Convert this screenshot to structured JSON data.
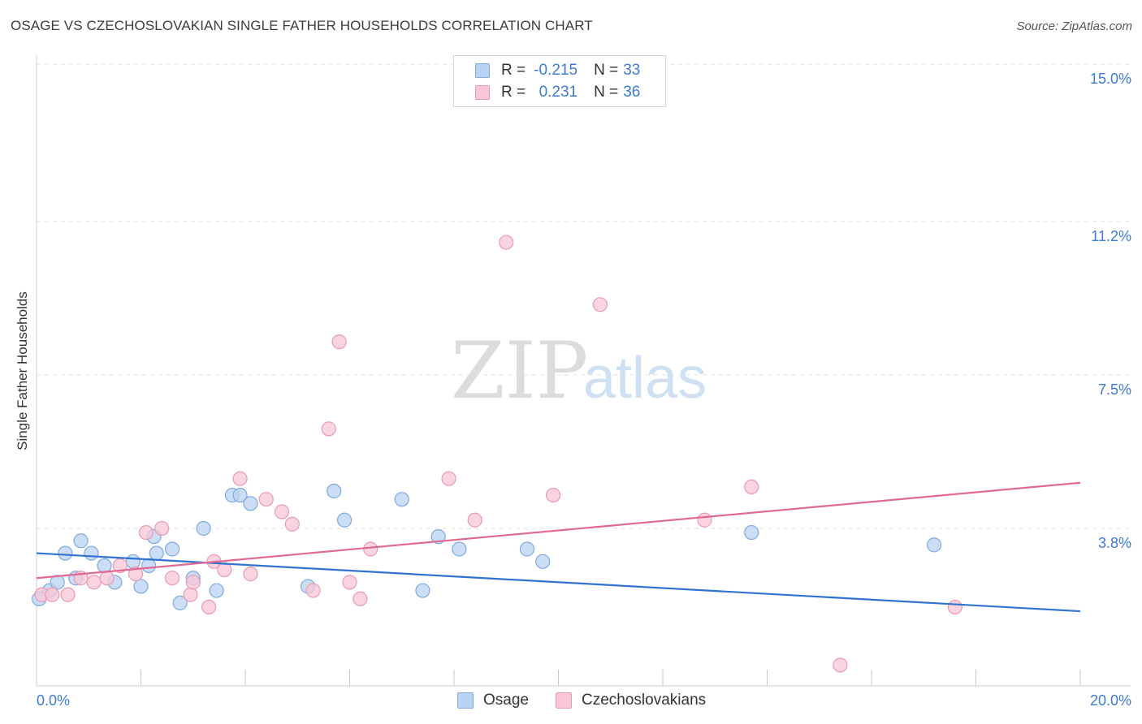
{
  "title": "OSAGE VS CZECHOSLOVAKIAN SINGLE FATHER HOUSEHOLDS CORRELATION CHART",
  "source": "Source: ZipAtlas.com",
  "watermark": {
    "zip": "ZIP",
    "atlas": "atlas"
  },
  "colors": {
    "osage_fill": "#b9d3f3",
    "osage_stroke": "#7fa9de",
    "osage_line": "#2f72d0",
    "czech_fill": "#f8c6d5",
    "czech_stroke": "#e99ab3",
    "czech_line": "#e06a95",
    "axis_label": "#3d7bd6",
    "grid": "#e2e2e2"
  },
  "stats": [
    {
      "r_label": "R =",
      "r_value": "-0.215",
      "n_label": "N =",
      "n_value": "33"
    },
    {
      "r_label": "R =",
      "r_value": "0.231",
      "n_label": "N =",
      "n_value": "36"
    }
  ],
  "legend": {
    "osage": "Osage",
    "czech": "Czechoslovakians"
  },
  "chart_data": {
    "type": "scatter",
    "title": "OSAGE VS CZECHOSLOVAKIAN SINGLE FATHER HOUSEHOLDS CORRELATION CHART",
    "xlabel": "",
    "ylabel": "Single Father Households",
    "xlim": [
      0,
      20
    ],
    "ylim": [
      0,
      15.0
    ],
    "x_tick_labels": [
      "0.0%",
      "20.0%"
    ],
    "y_ticks": [
      3.8,
      7.5,
      11.2,
      15.0
    ],
    "y_tick_labels": [
      "3.8%",
      "7.5%",
      "11.2%",
      "15.0%"
    ],
    "grid": true,
    "legend_position": "bottom-center",
    "series": [
      {
        "name": "Osage",
        "points": [
          [
            0.05,
            2.1
          ],
          [
            0.25,
            2.3
          ],
          [
            0.4,
            2.5
          ],
          [
            0.55,
            3.2
          ],
          [
            0.75,
            2.6
          ],
          [
            0.85,
            3.5
          ],
          [
            1.05,
            3.2
          ],
          [
            1.3,
            2.9
          ],
          [
            1.5,
            2.5
          ],
          [
            1.85,
            3.0
          ],
          [
            2.15,
            2.9
          ],
          [
            2.25,
            3.6
          ],
          [
            2.0,
            2.4
          ],
          [
            2.3,
            3.2
          ],
          [
            2.6,
            3.3
          ],
          [
            2.75,
            2.0
          ],
          [
            3.0,
            2.6
          ],
          [
            3.2,
            3.8
          ],
          [
            3.45,
            2.3
          ],
          [
            3.75,
            4.6
          ],
          [
            3.9,
            4.6
          ],
          [
            4.1,
            4.4
          ],
          [
            5.2,
            2.4
          ],
          [
            7.0,
            4.5
          ],
          [
            7.4,
            2.3
          ],
          [
            5.7,
            4.7
          ],
          [
            7.7,
            3.6
          ],
          [
            5.9,
            4.0
          ],
          [
            8.1,
            3.3
          ],
          [
            9.4,
            3.3
          ],
          [
            9.7,
            3.0
          ],
          [
            13.7,
            3.7
          ],
          [
            17.2,
            3.4
          ]
        ]
      },
      {
        "name": "Czechoslovakians",
        "points": [
          [
            0.1,
            2.2
          ],
          [
            0.3,
            2.2
          ],
          [
            0.6,
            2.2
          ],
          [
            0.85,
            2.6
          ],
          [
            1.1,
            2.5
          ],
          [
            1.35,
            2.6
          ],
          [
            1.6,
            2.9
          ],
          [
            1.9,
            2.7
          ],
          [
            2.1,
            3.7
          ],
          [
            2.4,
            3.8
          ],
          [
            2.6,
            2.6
          ],
          [
            2.95,
            2.2
          ],
          [
            3.0,
            2.5
          ],
          [
            3.3,
            1.9
          ],
          [
            3.4,
            3.0
          ],
          [
            3.6,
            2.8
          ],
          [
            3.9,
            5.0
          ],
          [
            4.1,
            2.7
          ],
          [
            4.4,
            4.5
          ],
          [
            4.7,
            4.2
          ],
          [
            4.9,
            3.9
          ],
          [
            5.3,
            2.3
          ],
          [
            5.6,
            6.2
          ],
          [
            5.8,
            8.3
          ],
          [
            6.0,
            2.5
          ],
          [
            6.2,
            2.1
          ],
          [
            6.4,
            3.3
          ],
          [
            7.9,
            5.0
          ],
          [
            8.4,
            4.0
          ],
          [
            9.0,
            10.7
          ],
          [
            9.9,
            4.6
          ],
          [
            10.8,
            9.2
          ],
          [
            12.8,
            4.0
          ],
          [
            13.7,
            4.8
          ],
          [
            15.4,
            0.5
          ],
          [
            17.6,
            1.9
          ]
        ]
      }
    ],
    "trend_lines": [
      {
        "name": "Osage",
        "x": [
          0,
          20
        ],
        "y": [
          3.2,
          1.8
        ]
      },
      {
        "name": "Czechoslovakians",
        "x": [
          0,
          20
        ],
        "y": [
          2.6,
          4.9
        ]
      }
    ]
  }
}
